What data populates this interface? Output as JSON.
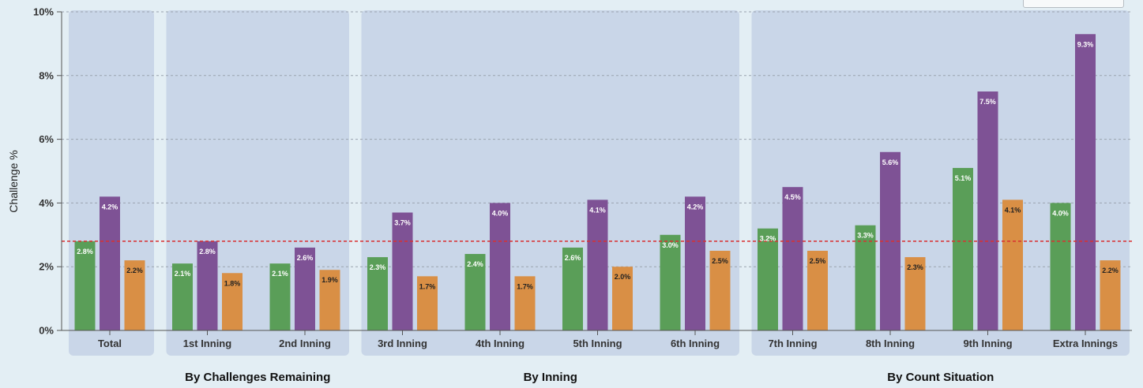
{
  "chart_data": {
    "type": "bar",
    "ylabel": "Challenge %",
    "ylim": [
      0,
      10
    ],
    "yticks": [
      "0%",
      "2%",
      "4%",
      "6%",
      "8%",
      "10%"
    ],
    "grid": true,
    "reference_line": 2.8,
    "colors": [
      "#5a9e58",
      "#7e5295",
      "#d98f45"
    ],
    "panels": [
      {
        "label": "",
        "categories": [
          "Total"
        ]
      },
      {
        "label": "By Challenges Remaining",
        "categories": [
          "1st Inning",
          "2nd Inning"
        ]
      },
      {
        "label": "By Inning",
        "categories": [
          "3rd Inning",
          "4th Inning",
          "5th Inning",
          "6th Inning"
        ]
      },
      {
        "label": "By Count Situation",
        "categories": [
          "7th Inning",
          "8th Inning",
          "9th Inning",
          "Extra Innings"
        ]
      }
    ],
    "categories": [
      "Total",
      "1st Inning",
      "2nd Inning",
      "3rd Inning",
      "4th Inning",
      "5th Inning",
      "6th Inning",
      "7th Inning",
      "8th Inning",
      "9th Inning",
      "Extra Innings"
    ],
    "series": [
      {
        "values": [
          2.8,
          2.1,
          2.1,
          2.3,
          2.4,
          2.6,
          3.0,
          3.2,
          3.3,
          5.1,
          4.0
        ]
      },
      {
        "values": [
          4.2,
          2.8,
          2.6,
          3.7,
          4.0,
          4.1,
          4.2,
          4.5,
          5.6,
          7.5,
          9.3
        ]
      },
      {
        "values": [
          2.2,
          1.8,
          1.9,
          1.7,
          1.7,
          2.0,
          2.5,
          2.5,
          2.3,
          4.1,
          2.2
        ]
      }
    ]
  }
}
